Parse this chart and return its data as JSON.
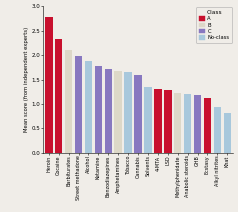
{
  "drugs": [
    "Heroin",
    "Cocaine",
    "Barbiturates",
    "Street methadone",
    "Alcohol",
    "Ketamine",
    "Benzodiazepines",
    "Amphetamines",
    "Tobacco",
    "Cannabis",
    "Solvents",
    "4-MTA",
    "LSD",
    "Methylphenidate",
    "Anabolic steroids",
    "GHB",
    "Ecstasy",
    "Alkyl nitrites",
    "Khat"
  ],
  "values": [
    2.78,
    2.33,
    2.1,
    1.98,
    1.88,
    1.78,
    1.72,
    1.68,
    1.65,
    1.6,
    1.35,
    1.3,
    1.28,
    1.23,
    1.2,
    1.18,
    1.13,
    0.93,
    0.82
  ],
  "classes": [
    "A",
    "A",
    "B",
    "C",
    "No-class",
    "C",
    "C",
    "B",
    "No-class",
    "C",
    "No-class",
    "A",
    "A",
    "B",
    "No-class",
    "C",
    "A",
    "No-class",
    "No-class"
  ],
  "colors": {
    "A": "#c8102e",
    "B": "#ddd8c8",
    "C": "#8878c0",
    "No-class": "#a8c8dc"
  },
  "ylabel": "Mean score (from independent experts)",
  "ylim": [
    0,
    3.0
  ],
  "yticks": [
    0.0,
    0.5,
    1.0,
    1.5,
    2.0,
    2.5,
    3.0
  ],
  "legend_title": "Class",
  "legend_entries": [
    "A",
    "B",
    "C",
    "No-class"
  ],
  "background_color": "#f0ede8"
}
